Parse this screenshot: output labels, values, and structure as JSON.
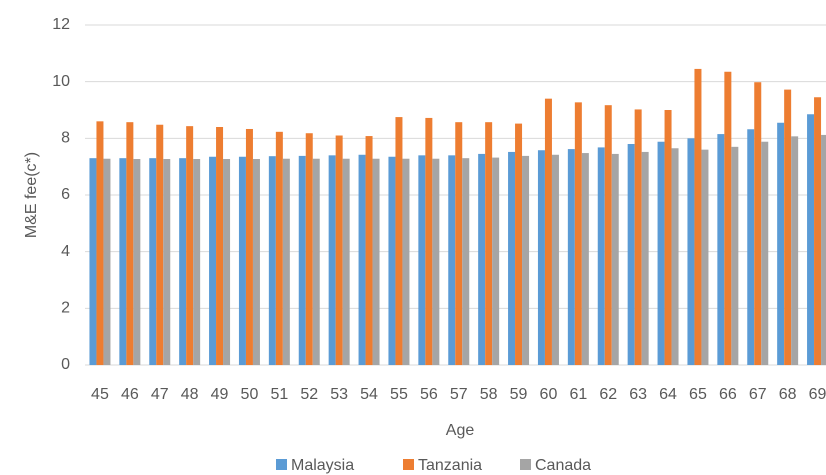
{
  "chart_data": {
    "type": "bar",
    "y_label": "M&E fee(c*)",
    "x_label": "Age",
    "categories": [
      "45",
      "46",
      "47",
      "48",
      "49",
      "50",
      "51",
      "52",
      "53",
      "54",
      "55",
      "56",
      "57",
      "58",
      "59",
      "60",
      "61",
      "62",
      "63",
      "64",
      "65",
      "66",
      "67",
      "68",
      "69"
    ],
    "series": [
      {
        "name": "Malaysia",
        "color": "#5b9bd5",
        "values": [
          7.3,
          7.3,
          7.3,
          7.3,
          7.35,
          7.35,
          7.37,
          7.38,
          7.4,
          7.42,
          7.35,
          7.4,
          7.4,
          7.45,
          7.52,
          7.58,
          7.62,
          7.68,
          7.8,
          7.88,
          8.0,
          8.15,
          8.32,
          8.55,
          8.85
        ]
      },
      {
        "name": "Tanzania",
        "color": "#ed7d31",
        "values": [
          8.6,
          8.57,
          8.48,
          8.43,
          8.4,
          8.33,
          8.23,
          8.18,
          8.1,
          8.08,
          8.75,
          8.72,
          8.57,
          8.57,
          8.52,
          9.4,
          9.27,
          9.17,
          9.02,
          9.0,
          10.45,
          10.35,
          9.98,
          9.72,
          9.45
        ]
      },
      {
        "name": "Canada",
        "color": "#a5a5a5",
        "values": [
          7.28,
          7.27,
          7.27,
          7.27,
          7.27,
          7.27,
          7.28,
          7.28,
          7.28,
          7.28,
          7.28,
          7.28,
          7.3,
          7.32,
          7.38,
          7.42,
          7.48,
          7.45,
          7.52,
          7.65,
          7.6,
          7.7,
          7.88,
          8.07,
          8.12
        ]
      }
    ],
    "ylim": [
      0,
      12
    ],
    "yticks": [
      0,
      2,
      4,
      6,
      8,
      10,
      12
    ],
    "grid": true,
    "legend": "bottom"
  }
}
